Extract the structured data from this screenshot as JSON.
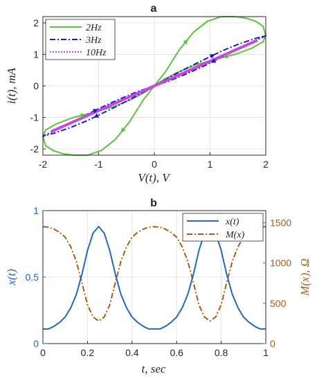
{
  "colors": {
    "green": "#5ec13b",
    "blue_dashdot": "#1a1acc",
    "magenta": "#c844e6",
    "xt_blue": "#2166c0",
    "mx_brown": "#a65c14",
    "grid": "#e3e3e3",
    "axis": "#262626"
  },
  "chart_data": [
    {
      "type": "line",
      "title": "a",
      "xlabel": "V(t),  V",
      "ylabel": "i(t),  mA",
      "xlim": [
        -2,
        2
      ],
      "ylim": [
        -2.2,
        2.2
      ],
      "xticks": [
        -2,
        -1,
        0,
        1,
        2
      ],
      "yticks": [
        -2,
        -1,
        0,
        1,
        2
      ],
      "grid": true,
      "legend_position": "top-left",
      "series": [
        {
          "name": "2Hz",
          "style": "solid",
          "x": [
            0,
            0.2,
            0.45,
            0.7,
            0.95,
            1.2,
            1.45,
            1.65,
            1.82,
            1.95,
            2.0,
            1.95,
            1.75,
            1.45,
            1.1,
            0.75,
            0.4,
            0.15,
            0,
            -0.2,
            -0.45,
            -0.7,
            -0.95,
            -1.2,
            -1.45,
            -1.65,
            -1.82,
            -1.95,
            -2.0,
            -1.95,
            -1.75,
            -1.45,
            -1.1,
            -0.75,
            -0.4,
            -0.15,
            0
          ],
          "y": [
            0,
            0.45,
            1.15,
            1.7,
            2.05,
            2.2,
            2.2,
            2.15,
            2.05,
            1.9,
            1.6,
            1.4,
            1.2,
            1.0,
            0.85,
            0.67,
            0.42,
            0.18,
            0,
            -0.45,
            -1.15,
            -1.7,
            -2.05,
            -2.2,
            -2.2,
            -2.15,
            -2.05,
            -1.9,
            -1.6,
            -1.4,
            -1.2,
            -1.0,
            -0.85,
            -0.67,
            -0.42,
            -0.18,
            0
          ]
        },
        {
          "name": "3Hz",
          "style": "dashdot",
          "x": [
            0,
            0.3,
            0.6,
            0.9,
            1.2,
            1.5,
            1.8,
            2.0,
            1.8,
            1.5,
            1.2,
            0.9,
            0.6,
            0.3,
            0,
            -0.3,
            -0.6,
            -0.9,
            -1.2,
            -1.5,
            -1.8,
            -2.0,
            -1.8,
            -1.5,
            -1.2,
            -0.9,
            -0.6,
            -0.3,
            0
          ],
          "y": [
            0,
            0.3,
            0.58,
            0.84,
            1.1,
            1.32,
            1.5,
            1.6,
            1.42,
            1.17,
            0.9,
            0.64,
            0.4,
            0.18,
            0,
            -0.3,
            -0.58,
            -0.84,
            -1.1,
            -1.32,
            -1.5,
            -1.6,
            -1.42,
            -1.17,
            -0.9,
            -0.64,
            -0.4,
            -0.18,
            0
          ]
        },
        {
          "name": "10Hz",
          "style": "dotted",
          "x": [
            -1.85,
            1.85
          ],
          "y": [
            -1.45,
            1.45
          ]
        }
      ]
    },
    {
      "type": "line",
      "title": "b",
      "xlabel": "t,  sec",
      "ylabel": "x(t)",
      "ylabel_right": "M(x),  Ω",
      "xlim": [
        0,
        1
      ],
      "ylim": [
        0,
        1
      ],
      "ylim_right": [
        0,
        1650
      ],
      "xticks": [
        0,
        0.2,
        0.4,
        0.6,
        0.8,
        1
      ],
      "yticks": [
        0,
        0.5,
        1
      ],
      "yticks_right": [
        0,
        500,
        1000,
        1500
      ],
      "grid": true,
      "legend_position": "top-right",
      "series": [
        {
          "name": "x(t)",
          "style": "solid",
          "axis": "left",
          "x": [
            0,
            0.025,
            0.05,
            0.075,
            0.1,
            0.125,
            0.15,
            0.175,
            0.2,
            0.225,
            0.25,
            0.275,
            0.3,
            0.325,
            0.35,
            0.375,
            0.4,
            0.425,
            0.45,
            0.475,
            0.5,
            0.525,
            0.55,
            0.575,
            0.6,
            0.625,
            0.65,
            0.675,
            0.7,
            0.725,
            0.75,
            0.775,
            0.8,
            0.825,
            0.85,
            0.875,
            0.9,
            0.925,
            0.95,
            0.975,
            1.0
          ],
          "y": [
            0.11,
            0.11,
            0.13,
            0.16,
            0.2,
            0.27,
            0.37,
            0.52,
            0.7,
            0.83,
            0.88,
            0.83,
            0.7,
            0.52,
            0.37,
            0.27,
            0.2,
            0.16,
            0.13,
            0.11,
            0.11,
            0.11,
            0.13,
            0.16,
            0.2,
            0.27,
            0.37,
            0.52,
            0.7,
            0.83,
            0.88,
            0.83,
            0.7,
            0.52,
            0.37,
            0.27,
            0.2,
            0.16,
            0.13,
            0.11,
            0.11
          ]
        },
        {
          "name": "M(x)",
          "style": "dashdot",
          "axis": "right",
          "x": [
            0,
            0.025,
            0.05,
            0.075,
            0.1,
            0.125,
            0.15,
            0.175,
            0.2,
            0.225,
            0.25,
            0.275,
            0.3,
            0.325,
            0.35,
            0.375,
            0.4,
            0.425,
            0.45,
            0.475,
            0.5,
            0.525,
            0.55,
            0.575,
            0.6,
            0.625,
            0.65,
            0.675,
            0.7,
            0.725,
            0.75,
            0.775,
            0.8,
            0.825,
            0.85,
            0.875,
            0.9,
            0.925,
            0.95,
            0.975,
            1.0
          ],
          "y": [
            1450,
            1445,
            1420,
            1380,
            1320,
            1200,
            1020,
            760,
            480,
            330,
            280,
            330,
            480,
            760,
            1020,
            1200,
            1320,
            1380,
            1420,
            1445,
            1450,
            1445,
            1420,
            1380,
            1320,
            1200,
            1020,
            760,
            480,
            330,
            280,
            330,
            480,
            760,
            1020,
            1200,
            1320,
            1380,
            1420,
            1445,
            1450
          ]
        }
      ]
    }
  ]
}
